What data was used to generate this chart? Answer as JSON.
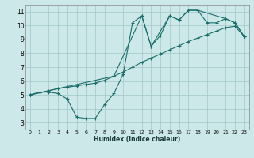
{
  "xlabel": "Humidex (Indice chaleur)",
  "xlim": [
    -0.5,
    23.5
  ],
  "ylim": [
    2.5,
    11.5
  ],
  "xticks": [
    0,
    1,
    2,
    3,
    4,
    5,
    6,
    7,
    8,
    9,
    10,
    11,
    12,
    13,
    14,
    15,
    16,
    17,
    18,
    19,
    20,
    21,
    22,
    23
  ],
  "yticks": [
    3,
    4,
    5,
    6,
    7,
    8,
    9,
    10,
    11
  ],
  "bg_color": "#cde8e8",
  "grid_color": "#a0c8c8",
  "line_color": "#1a6e6a",
  "series": [
    {
      "x": [
        0,
        1,
        2,
        3,
        4,
        5,
        6,
        7,
        8,
        9,
        10,
        11,
        12,
        13,
        14,
        15,
        16,
        17,
        18,
        19,
        20,
        21,
        22,
        23
      ],
      "y": [
        5.0,
        5.2,
        5.2,
        5.1,
        4.7,
        3.4,
        3.3,
        3.3,
        4.3,
        5.1,
        6.5,
        10.2,
        10.7,
        8.5,
        9.3,
        10.7,
        10.4,
        11.1,
        11.1,
        10.2,
        10.2,
        10.5,
        10.2,
        9.2
      ]
    },
    {
      "x": [
        0,
        1,
        2,
        3,
        4,
        5,
        6,
        7,
        8,
        9,
        10,
        11,
        12,
        13,
        14,
        15,
        16,
        17,
        18,
        19,
        20,
        21,
        22,
        23
      ],
      "y": [
        5.0,
        5.15,
        5.3,
        5.45,
        5.55,
        5.65,
        5.75,
        5.85,
        6.05,
        6.35,
        6.65,
        7.0,
        7.35,
        7.65,
        7.95,
        8.25,
        8.55,
        8.85,
        9.1,
        9.35,
        9.6,
        9.85,
        9.95,
        9.2
      ]
    },
    {
      "x": [
        0,
        3,
        9,
        12,
        13,
        15,
        16,
        17,
        18,
        21,
        22,
        23
      ],
      "y": [
        5.0,
        5.45,
        6.35,
        10.7,
        8.5,
        10.7,
        10.4,
        11.1,
        11.1,
        10.5,
        10.2,
        9.2
      ]
    }
  ]
}
